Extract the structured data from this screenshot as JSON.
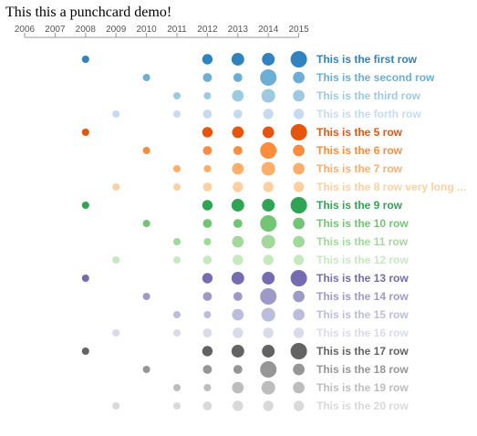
{
  "chart_data": {
    "type": "scatter",
    "title": "This this a punchcard demo!",
    "x": [
      "2006",
      "2007",
      "2008",
      "2009",
      "2010",
      "2011",
      "2012",
      "2013",
      "2014",
      "2015"
    ],
    "rows": [
      {
        "name": "This is the first row",
        "color": "#3182bd",
        "values": [
          0,
          0,
          2,
          0,
          0,
          0,
          4,
          6,
          6,
          10
        ]
      },
      {
        "name": "This is the second row",
        "color": "#6baed6",
        "values": [
          0,
          0,
          0,
          0,
          2,
          0,
          3,
          3,
          10,
          5
        ]
      },
      {
        "name": "This is the third row",
        "color": "#9ecae1",
        "values": [
          0,
          0,
          0,
          0,
          0,
          2,
          2,
          5,
          7,
          5
        ]
      },
      {
        "name": "This is the forth row",
        "color": "#c6dbef",
        "values": [
          0,
          0,
          0,
          2,
          0,
          2,
          3,
          3,
          4,
          4
        ]
      },
      {
        "name": "This is the 5 row",
        "color": "#e6550d",
        "values": [
          0,
          0,
          2,
          0,
          0,
          0,
          4,
          5,
          5,
          10
        ]
      },
      {
        "name": "This is the 6 row",
        "color": "#fd8d3c",
        "values": [
          0,
          0,
          0,
          0,
          2,
          0,
          3,
          3,
          10,
          5
        ]
      },
      {
        "name": "This is the 7 row",
        "color": "#fdae6b",
        "values": [
          0,
          0,
          0,
          0,
          0,
          2,
          2,
          5,
          7,
          5
        ]
      },
      {
        "name": "This is the 8 row very long ...",
        "color": "#fdd0a2",
        "values": [
          0,
          0,
          0,
          2,
          0,
          2,
          3,
          4,
          4,
          4
        ]
      },
      {
        "name": "This is the 9 row",
        "color": "#31a354",
        "values": [
          0,
          0,
          2,
          0,
          0,
          0,
          4,
          6,
          6,
          10
        ]
      },
      {
        "name": "This is the 10 row",
        "color": "#74c476",
        "values": [
          0,
          0,
          0,
          0,
          2,
          0,
          3,
          3,
          10,
          5
        ]
      },
      {
        "name": "This is the 11 row",
        "color": "#a1d99b",
        "values": [
          0,
          0,
          0,
          0,
          0,
          2,
          2,
          5,
          7,
          5
        ]
      },
      {
        "name": "This is the 12 row",
        "color": "#c7e9c0",
        "values": [
          0,
          0,
          0,
          2,
          0,
          2,
          3,
          4,
          4,
          4
        ]
      },
      {
        "name": "This is the 13 row",
        "color": "#756bb1",
        "values": [
          0,
          0,
          2,
          0,
          0,
          0,
          4,
          6,
          6,
          10
        ]
      },
      {
        "name": "This is the 14 row",
        "color": "#9e9ac8",
        "values": [
          0,
          0,
          0,
          0,
          2,
          0,
          3,
          3,
          10,
          5
        ]
      },
      {
        "name": "This is the 15 row",
        "color": "#bcbddc",
        "values": [
          0,
          0,
          0,
          0,
          0,
          2,
          2,
          5,
          7,
          5
        ]
      },
      {
        "name": "This is the 16 row",
        "color": "#dadaeb",
        "values": [
          0,
          0,
          0,
          2,
          0,
          2,
          3,
          4,
          4,
          4
        ]
      },
      {
        "name": "This is the 17 row",
        "color": "#636363",
        "values": [
          0,
          0,
          2,
          0,
          0,
          0,
          4,
          6,
          6,
          10
        ]
      },
      {
        "name": "This is the 18 row",
        "color": "#969696",
        "values": [
          0,
          0,
          0,
          0,
          2,
          0,
          3,
          3,
          10,
          5
        ]
      },
      {
        "name": "This is the 19 row",
        "color": "#bdbdbd",
        "values": [
          0,
          0,
          0,
          0,
          0,
          2,
          2,
          5,
          7,
          5
        ]
      },
      {
        "name": "This is the 20 row",
        "color": "#d9d9d9",
        "values": [
          0,
          0,
          0,
          2,
          0,
          2,
          3,
          4,
          4,
          4
        ]
      }
    ],
    "axis_color": "#999999",
    "grid": false,
    "legend": "none"
  }
}
